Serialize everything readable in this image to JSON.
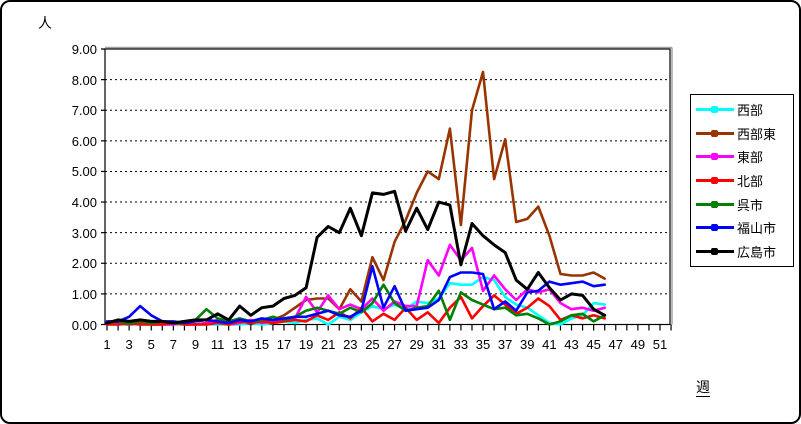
{
  "chart": {
    "y_axis_title": "人",
    "x_axis_title": "週",
    "y_tick_labels": [
      "0.00",
      "1.00",
      "2.00",
      "3.00",
      "4.00",
      "5.00",
      "6.00",
      "7.00",
      "8.00",
      "9.00"
    ],
    "x_tick_labels": [
      "1",
      "3",
      "5",
      "7",
      "9",
      "11",
      "13",
      "15",
      "17",
      "19",
      "21",
      "23",
      "25",
      "27",
      "29",
      "31",
      "33",
      "35",
      "37",
      "39",
      "41",
      "43",
      "45",
      "47",
      "49",
      "51"
    ]
  },
  "chart_data": {
    "type": "line",
    "title": "",
    "xlabel": "週",
    "ylabel": "人",
    "xlim": [
      1,
      52
    ],
    "ylim": [
      0,
      9
    ],
    "x_tick_step": 2,
    "grid": true,
    "legend_position": "right",
    "x": [
      1,
      2,
      3,
      4,
      5,
      6,
      7,
      8,
      9,
      10,
      11,
      12,
      13,
      14,
      15,
      16,
      17,
      18,
      19,
      20,
      21,
      22,
      23,
      24,
      25,
      26,
      27,
      28,
      29,
      30,
      31,
      32,
      33,
      34,
      35,
      36,
      37,
      38,
      39,
      40,
      41,
      42,
      43,
      44,
      45,
      46
    ],
    "series": [
      {
        "name": "西部",
        "color": "#00FFFF",
        "values": [
          0,
          0,
          0,
          0,
          0,
          0,
          0,
          0,
          0,
          0,
          0,
          0,
          0,
          0.05,
          0,
          0.05,
          0.1,
          0.05,
          0.15,
          0.2,
          0,
          0.25,
          0.15,
          0.4,
          0.6,
          0.5,
          0.65,
          0.5,
          0.75,
          0.7,
          0.85,
          1.35,
          1.3,
          1.3,
          1.55,
          1.45,
          0.9,
          0.65,
          0.55,
          0.3,
          0.05,
          0,
          0.2,
          0.3,
          0.7,
          0.65
        ]
      },
      {
        "name": "西部東",
        "color": "#993300",
        "values": [
          0,
          0.05,
          0,
          0.05,
          0,
          0,
          0.05,
          0,
          0,
          0.05,
          0.1,
          0.05,
          0.1,
          0.05,
          0.1,
          0.15,
          0.3,
          0.55,
          0.8,
          0.85,
          0.85,
          0.5,
          1.15,
          0.75,
          2.2,
          1.45,
          2.7,
          3.4,
          4.3,
          5.0,
          4.75,
          6.4,
          3.25,
          7.0,
          8.25,
          4.75,
          6.05,
          3.35,
          3.45,
          3.85,
          2.9,
          1.65,
          1.6,
          1.6,
          1.7,
          1.5
        ]
      },
      {
        "name": "東部",
        "color": "#FF00FF",
        "values": [
          0.05,
          0,
          0.05,
          0,
          0.05,
          0,
          0,
          0.05,
          0,
          0.05,
          0.15,
          0,
          0.05,
          0.15,
          0.05,
          0.1,
          0.1,
          0.2,
          0.9,
          0.4,
          0.95,
          0.5,
          0.65,
          0.5,
          0.85,
          0.45,
          0.75,
          0.6,
          0.6,
          2.1,
          1.6,
          2.6,
          2.1,
          2.5,
          1.1,
          1.6,
          1.15,
          0.8,
          1.15,
          1.05,
          1.15,
          0.7,
          0.5,
          0.55,
          0.45,
          0.55
        ]
      },
      {
        "name": "北部",
        "color": "#FF0000",
        "values": [
          0,
          0,
          0.05,
          0,
          0,
          0,
          0.05,
          0,
          0,
          0,
          0.05,
          0,
          0.1,
          0.05,
          0.1,
          0.05,
          0.1,
          0.15,
          0.1,
          0.3,
          0.15,
          0.4,
          0.2,
          0.55,
          0.1,
          0.35,
          0.15,
          0.55,
          0.15,
          0.4,
          0.05,
          0.55,
          0.9,
          0.2,
          0.6,
          0.95,
          0.65,
          0.35,
          0.55,
          0.85,
          0.6,
          0.15,
          0.3,
          0.2,
          0.3,
          0.2
        ]
      },
      {
        "name": "呉市",
        "color": "#008000",
        "values": [
          0.05,
          0.1,
          0.05,
          0.1,
          0.05,
          0.1,
          0.05,
          0.05,
          0.15,
          0.5,
          0.2,
          0.1,
          0.2,
          0.1,
          0.15,
          0.25,
          0.15,
          0.25,
          0.45,
          0.55,
          0.45,
          0.35,
          0.55,
          0.4,
          0.7,
          1.3,
          0.7,
          0.45,
          0.55,
          0.6,
          1.1,
          0.15,
          1.05,
          0.8,
          0.65,
          0.5,
          0.55,
          0.3,
          0.35,
          0.2,
          0,
          0.1,
          0.3,
          0.35,
          0.1,
          0.3
        ]
      },
      {
        "name": "福山市",
        "color": "#0000FF",
        "values": [
          0.1,
          0.1,
          0.25,
          0.6,
          0.3,
          0.1,
          0.1,
          0.05,
          0.1,
          0.15,
          0.1,
          0.05,
          0.15,
          0.1,
          0.2,
          0.15,
          0.2,
          0.25,
          0.25,
          0.35,
          0.45,
          0.3,
          0.25,
          0.45,
          1.9,
          0.55,
          1.25,
          0.45,
          0.5,
          0.55,
          0.8,
          1.55,
          1.7,
          1.7,
          1.65,
          0.5,
          0.75,
          0.45,
          1.05,
          1.1,
          1.4,
          1.3,
          1.35,
          1.4,
          1.25,
          1.3
        ]
      },
      {
        "name": "広島市",
        "color": "#000000",
        "values": [
          0.05,
          0.15,
          0.1,
          0.15,
          0.1,
          0.1,
          0.05,
          0.1,
          0.15,
          0.15,
          0.35,
          0.15,
          0.6,
          0.3,
          0.55,
          0.6,
          0.85,
          0.95,
          1.2,
          2.85,
          3.2,
          3.0,
          3.8,
          2.9,
          4.3,
          4.25,
          4.35,
          3.05,
          3.8,
          3.1,
          4.0,
          3.9,
          1.95,
          3.3,
          2.9,
          2.6,
          2.35,
          1.45,
          1.15,
          1.7,
          1.2,
          0.8,
          1.0,
          0.95,
          0.5,
          0.3
        ]
      }
    ]
  }
}
